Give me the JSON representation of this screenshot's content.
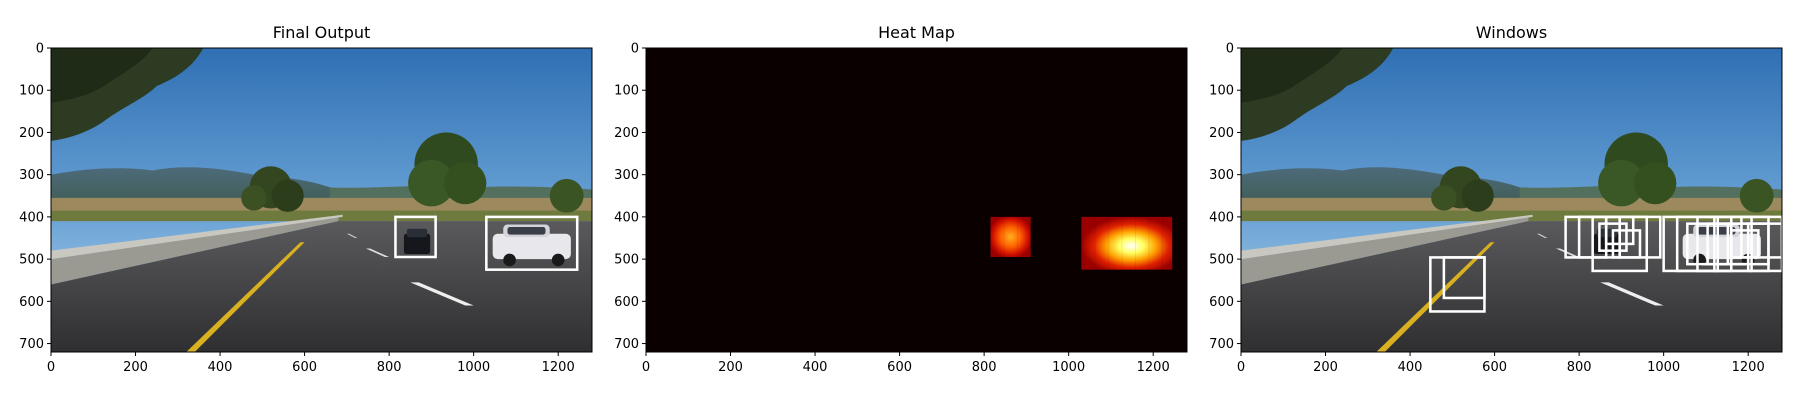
{
  "figure": {
    "image_extent": {
      "x": [
        0,
        1280
      ],
      "y": [
        720,
        0
      ]
    },
    "panels": [
      {
        "title": "Final Output",
        "image": "road-scene",
        "x_ticks": [
          0,
          200,
          400,
          600,
          800,
          1000,
          1200
        ],
        "y_ticks": [
          0,
          100,
          200,
          300,
          400,
          500,
          600,
          700
        ],
        "boxes": [
          {
            "x1": 815,
            "y1": 400,
            "x2": 910,
            "y2": 495
          },
          {
            "x1": 1030,
            "y1": 400,
            "x2": 1245,
            "y2": 525
          }
        ]
      },
      {
        "title": "Heat Map",
        "image": "heat-map",
        "x_ticks": [
          0,
          200,
          400,
          600,
          800,
          1000,
          1200
        ],
        "y_ticks": [
          0,
          100,
          200,
          300,
          400,
          500,
          600,
          700
        ],
        "blobs": [
          {
            "x1": 815,
            "y1": 400,
            "x2": 910,
            "y2": 495,
            "intensity": 0.6
          },
          {
            "x1": 1030,
            "y1": 400,
            "x2": 1245,
            "y2": 525,
            "intensity": 1.0
          }
        ]
      },
      {
        "title": "Windows",
        "image": "road-scene",
        "x_ticks": [
          0,
          200,
          400,
          600,
          800,
          1000,
          1200
        ],
        "y_ticks": [
          0,
          100,
          200,
          300,
          400,
          500,
          600,
          700
        ],
        "boxes": [
          {
            "x1": 448,
            "y1": 496,
            "x2": 576,
            "y2": 624
          },
          {
            "x1": 480,
            "y1": 496,
            "x2": 576,
            "y2": 592
          },
          {
            "x1": 768,
            "y1": 400,
            "x2": 864,
            "y2": 496
          },
          {
            "x1": 800,
            "y1": 400,
            "x2": 896,
            "y2": 496
          },
          {
            "x1": 832,
            "y1": 400,
            "x2": 960,
            "y2": 528
          },
          {
            "x1": 848,
            "y1": 416,
            "x2": 912,
            "y2": 480
          },
          {
            "x1": 864,
            "y1": 400,
            "x2": 928,
            "y2": 464
          },
          {
            "x1": 880,
            "y1": 432,
            "x2": 944,
            "y2": 496
          },
          {
            "x1": 896,
            "y1": 400,
            "x2": 992,
            "y2": 496
          },
          {
            "x1": 1000,
            "y1": 400,
            "x2": 1128,
            "y2": 528
          },
          {
            "x1": 1032,
            "y1": 400,
            "x2": 1160,
            "y2": 528
          },
          {
            "x1": 1056,
            "y1": 416,
            "x2": 1152,
            "y2": 512
          },
          {
            "x1": 1080,
            "y1": 400,
            "x2": 1208,
            "y2": 528
          },
          {
            "x1": 1104,
            "y1": 416,
            "x2": 1200,
            "y2": 512
          },
          {
            "x1": 1120,
            "y1": 400,
            "x2": 1248,
            "y2": 528
          },
          {
            "x1": 1152,
            "y1": 416,
            "x2": 1248,
            "y2": 512
          },
          {
            "x1": 1160,
            "y1": 432,
            "x2": 1224,
            "y2": 496
          },
          {
            "x1": 1184,
            "y1": 400,
            "x2": 1280,
            "y2": 496
          },
          {
            "x1": 1200,
            "y1": 416,
            "x2": 1280,
            "y2": 528
          }
        ]
      }
    ]
  }
}
